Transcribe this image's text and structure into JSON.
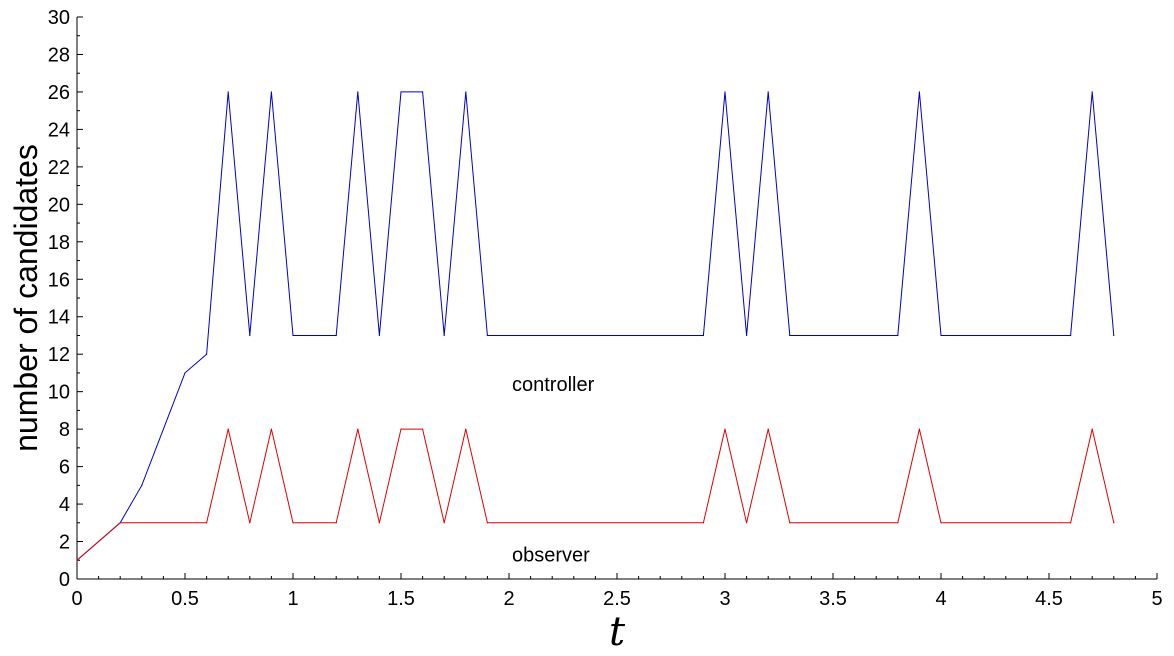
{
  "chart_data": {
    "type": "line",
    "title": "",
    "xlabel": "t",
    "ylabel": "number of candidates",
    "xlim": [
      0,
      5
    ],
    "ylim": [
      0,
      30
    ],
    "xticks": [
      0,
      0.5,
      1,
      1.5,
      2,
      2.5,
      3,
      3.5,
      4,
      4.5,
      5
    ],
    "xtick_labels": [
      "0",
      "0.5",
      "1",
      "1.5",
      "2",
      "2.5",
      "3",
      "3.5",
      "4",
      "4.5",
      "5"
    ],
    "yticks": [
      0,
      2,
      4,
      6,
      8,
      10,
      12,
      14,
      16,
      18,
      20,
      22,
      24,
      26,
      28,
      30
    ],
    "ytick_labels": [
      "0",
      "2",
      "4",
      "6",
      "8",
      "10",
      "12",
      "14",
      "16",
      "18",
      "20",
      "22",
      "24",
      "26",
      "28",
      "30"
    ],
    "grid": false,
    "legend": "none",
    "series": [
      {
        "name": "controller",
        "color": "#0000cc",
        "points": [
          [
            0,
            1
          ],
          [
            0.2,
            3
          ],
          [
            0.3,
            5
          ],
          [
            0.5,
            11
          ],
          [
            0.6,
            12
          ],
          [
            0.7,
            26
          ],
          [
            0.8,
            13
          ],
          [
            0.9,
            26
          ],
          [
            1.0,
            13
          ],
          [
            1.2,
            13
          ],
          [
            1.3,
            26
          ],
          [
            1.4,
            13
          ],
          [
            1.5,
            26
          ],
          [
            1.6,
            26
          ],
          [
            1.7,
            13
          ],
          [
            1.8,
            26
          ],
          [
            1.9,
            13
          ],
          [
            2.9,
            13
          ],
          [
            3.0,
            26
          ],
          [
            3.1,
            13
          ],
          [
            3.2,
            26
          ],
          [
            3.3,
            13
          ],
          [
            3.8,
            13
          ],
          [
            3.9,
            26
          ],
          [
            4.0,
            13
          ],
          [
            4.6,
            13
          ],
          [
            4.7,
            26
          ],
          [
            4.8,
            13
          ]
        ]
      },
      {
        "name": "observer",
        "color": "#dd0000",
        "points": [
          [
            0,
            1
          ],
          [
            0.2,
            3
          ],
          [
            0.6,
            3
          ],
          [
            0.7,
            8
          ],
          [
            0.8,
            3
          ],
          [
            0.9,
            8
          ],
          [
            1.0,
            3
          ],
          [
            1.2,
            3
          ],
          [
            1.3,
            8
          ],
          [
            1.4,
            3
          ],
          [
            1.5,
            8
          ],
          [
            1.6,
            8
          ],
          [
            1.7,
            3
          ],
          [
            1.8,
            8
          ],
          [
            1.9,
            3
          ],
          [
            2.9,
            3
          ],
          [
            3.0,
            8
          ],
          [
            3.1,
            3
          ],
          [
            3.2,
            8
          ],
          [
            3.3,
            3
          ],
          [
            3.8,
            3
          ],
          [
            3.9,
            8
          ],
          [
            4.0,
            3
          ],
          [
            4.6,
            3
          ],
          [
            4.7,
            8
          ],
          [
            4.8,
            3
          ]
        ]
      }
    ],
    "annotations": [
      {
        "text": "controller",
        "x": 2.0,
        "y": 10.4
      },
      {
        "text": "observer",
        "x": 2.0,
        "y": 1.3
      }
    ]
  }
}
